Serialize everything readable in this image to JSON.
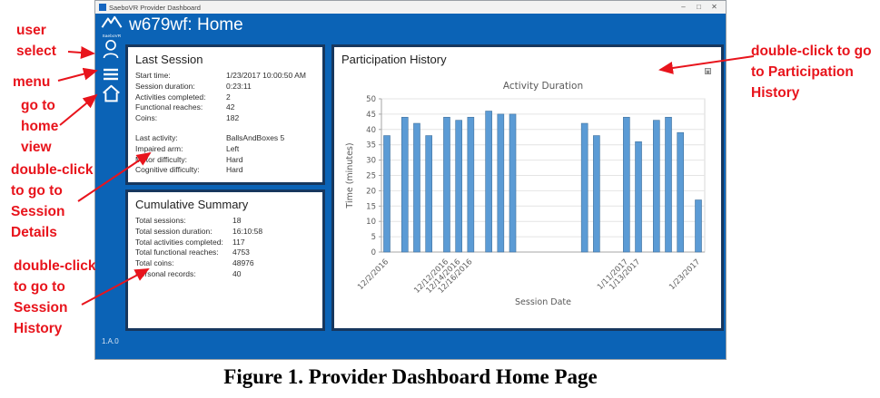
{
  "window": {
    "title": "SaeboVR Provider Dashboard",
    "minimize_glyph": "–",
    "maximize_glyph": "□",
    "close_glyph": "✕"
  },
  "header": {
    "logo_text": "SaeboVR",
    "title": "w679wf: Home"
  },
  "sidebar": {
    "items": [
      {
        "icon": "user-icon"
      },
      {
        "icon": "hamburger-menu-icon"
      },
      {
        "icon": "home-icon"
      }
    ]
  },
  "footer": {
    "version": "1.A.0"
  },
  "last_session": {
    "title": "Last Session",
    "rows": [
      {
        "label": "Start time:",
        "value": "1/23/2017 10:00:50 AM"
      },
      {
        "label": "Session duration:",
        "value": "0:23:11"
      },
      {
        "label": "Activities completed:",
        "value": "2"
      },
      {
        "label": "Functional reaches:",
        "value": "42"
      },
      {
        "label": "Coins:",
        "value": "182"
      }
    ],
    "rows2": [
      {
        "label": "Last activity:",
        "value": "BallsAndBoxes 5"
      },
      {
        "label": "Impaired arm:",
        "value": "Left"
      },
      {
        "label": "Motor difficulty:",
        "value": "Hard"
      },
      {
        "label": "Cognitive difficulty:",
        "value": "Hard"
      }
    ]
  },
  "cumulative_summary": {
    "title": "Cumulative Summary",
    "rows": [
      {
        "label": "Total sessions:",
        "value": "18"
      },
      {
        "label": "Total session duration:",
        "value": "16:10:58"
      },
      {
        "label": "Total activities completed:",
        "value": "117"
      },
      {
        "label": "Total functional reaches:",
        "value": "4753"
      },
      {
        "label": "Total coins:",
        "value": "48976"
      },
      {
        "label": "Personal records:",
        "value": "40"
      }
    ]
  },
  "participation": {
    "title": "Participation History",
    "corner_icon": "save-icon"
  },
  "chart_data": {
    "type": "bar",
    "title": "Activity Duration",
    "xlabel": "Session Date",
    "ylabel": "Time (minutes)",
    "ylim": [
      0,
      50
    ],
    "ytick_step": 5,
    "grid": "horizontal",
    "legend": "none",
    "bar_color": "#5b9bd5",
    "bar_edge_color": "#41719c",
    "x_span_days": 52,
    "sessions": [
      {
        "day": 0,
        "minutes": 38
      },
      {
        "day": 3,
        "minutes": 44
      },
      {
        "day": 5,
        "minutes": 42
      },
      {
        "day": 7,
        "minutes": 38
      },
      {
        "day": 10,
        "minutes": 44
      },
      {
        "day": 12,
        "minutes": 43
      },
      {
        "day": 14,
        "minutes": 44
      },
      {
        "day": 17,
        "minutes": 46
      },
      {
        "day": 19,
        "minutes": 45
      },
      {
        "day": 21,
        "minutes": 45
      },
      {
        "day": 33,
        "minutes": 42
      },
      {
        "day": 35,
        "minutes": 38
      },
      {
        "day": 40,
        "minutes": 44
      },
      {
        "day": 42,
        "minutes": 36
      },
      {
        "day": 45,
        "minutes": 43
      },
      {
        "day": 47,
        "minutes": 44
      },
      {
        "day": 49,
        "minutes": 39
      },
      {
        "day": 52,
        "minutes": 17
      }
    ],
    "xticks": [
      {
        "day": 0,
        "label": "12/2/2016"
      },
      {
        "day": 10,
        "label": "12/12/2016"
      },
      {
        "day": 12,
        "label": "12/14/2016"
      },
      {
        "day": 14,
        "label": "12/16/2016"
      },
      {
        "day": 40,
        "label": "1/11/2017"
      },
      {
        "day": 42,
        "label": "1/13/2017"
      },
      {
        "day": 52,
        "label": "1/23/2017"
      }
    ]
  },
  "annotations": {
    "color": "#e8141c",
    "items": [
      {
        "id": "user-select",
        "text": "user\nselect"
      },
      {
        "id": "menu",
        "text": "menu"
      },
      {
        "id": "home",
        "text": "go to\nhome\nview"
      },
      {
        "id": "session-details",
        "text": "double-click\nto go to\nSession\nDetails"
      },
      {
        "id": "session-history",
        "text": "double-click\nto go to\nSession\nHistory"
      },
      {
        "id": "participation-history",
        "text": "double-click to go\nto Participation\nHistory"
      }
    ]
  },
  "caption": "Figure 1. Provider Dashboard Home Page",
  "colors": {
    "app_blue": "#0b63b6",
    "panel_border": "#17375e",
    "accent_bar_blue": "#5b9bd5"
  }
}
